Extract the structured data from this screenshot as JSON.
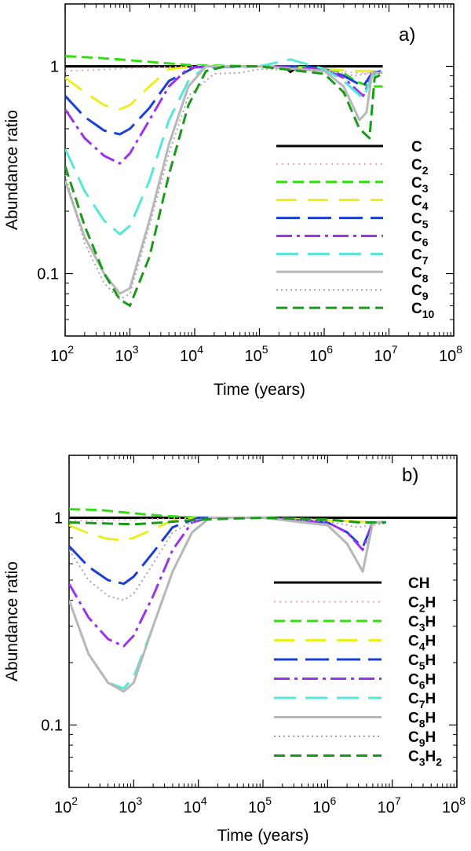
{
  "chart_data": [
    {
      "type": "line",
      "panel_label": "a)",
      "xlabel": "Time (years)",
      "ylabel": "Abundance ratio",
      "xscale": "log",
      "yscale": "log",
      "xlim": [
        100,
        100000000
      ],
      "ylim": [
        0.05,
        2
      ],
      "x_ticks": [
        {
          "base": "10",
          "exp": "2"
        },
        {
          "base": "10",
          "exp": "3"
        },
        {
          "base": "10",
          "exp": "4"
        },
        {
          "base": "10",
          "exp": "5"
        },
        {
          "base": "10",
          "exp": "6"
        },
        {
          "base": "10",
          "exp": "7"
        },
        {
          "base": "10",
          "exp": "8"
        }
      ],
      "y_ticks": [
        {
          "value": 1,
          "label": "1"
        },
        {
          "value": 0.1,
          "label": "0.1"
        }
      ],
      "legend_position": "lower-right",
      "series": [
        {
          "name": "C",
          "base": "C",
          "sub": "",
          "color": "#000000",
          "dash": "",
          "width": 3,
          "x": [
            100,
            1000,
            10000,
            100000,
            250000,
            300000,
            400000,
            1000000,
            3000000,
            8000000
          ],
          "y": [
            1.0,
            1.0,
            1.0,
            1.0,
            0.99,
            0.94,
            1.0,
            1.0,
            1.0,
            1.0
          ]
        },
        {
          "name": "C2",
          "base": "C",
          "sub": "2",
          "color": "#f4a0b0",
          "dash": "2,5",
          "width": 2,
          "x": [
            100,
            300,
            1000,
            3000,
            10000,
            30000,
            100000,
            1000000,
            3000000,
            8000000
          ],
          "y": [
            0.95,
            0.96,
            0.98,
            0.99,
            1.0,
            0.99,
            1.0,
            0.98,
            0.93,
            0.92
          ]
        },
        {
          "name": "C3",
          "base": "C",
          "sub": "3",
          "color": "#33dd11",
          "dash": "14,7",
          "width": 3,
          "x": [
            100,
            300,
            1000,
            3000,
            10000,
            100000,
            500000,
            1000000,
            2000000,
            3000000,
            5000000,
            8000000
          ],
          "y": [
            1.12,
            1.1,
            1.07,
            1.04,
            1.01,
            1.0,
            0.99,
            0.98,
            0.93,
            0.85,
            0.8,
            0.8
          ]
        },
        {
          "name": "C4",
          "base": "C",
          "sub": "4",
          "color": "#e8f020",
          "dash": "26,14",
          "width": 3,
          "x": [
            100,
            200,
            400,
            700,
            1000,
            2000,
            4000,
            10000,
            100000,
            1000000,
            3000000,
            8000000
          ],
          "y": [
            0.88,
            0.75,
            0.65,
            0.62,
            0.65,
            0.8,
            0.97,
            1.0,
            1.0,
            0.97,
            0.95,
            0.95
          ]
        },
        {
          "name": "C5",
          "base": "C",
          "sub": "5",
          "color": "#1a3fd6",
          "dash": "30,10",
          "width": 3,
          "x": [
            100,
            200,
            400,
            700,
            1000,
            2000,
            4000,
            10000,
            100000,
            500000,
            1000000,
            2000000,
            4000000,
            5500000,
            8000000
          ],
          "y": [
            0.72,
            0.57,
            0.49,
            0.47,
            0.5,
            0.63,
            0.85,
            0.99,
            1.0,
            1.0,
            0.97,
            0.9,
            0.8,
            0.93,
            0.95
          ]
        },
        {
          "name": "C6",
          "base": "C",
          "sub": "6",
          "color": "#9933ee",
          "dash": "20,6,4,6",
          "width": 3,
          "x": [
            100,
            200,
            400,
            700,
            1000,
            2000,
            4000,
            8000,
            15000,
            100000,
            1000000,
            2000000,
            4000000,
            5500000,
            8000000
          ],
          "y": [
            0.62,
            0.45,
            0.37,
            0.34,
            0.38,
            0.55,
            0.8,
            0.98,
            1.0,
            1.0,
            0.97,
            0.88,
            0.72,
            0.92,
            0.94
          ]
        },
        {
          "name": "C7",
          "base": "C",
          "sub": "7",
          "color": "#55e8d8",
          "dash": "28,12",
          "width": 3,
          "x": [
            100,
            200,
            400,
            700,
            1000,
            2000,
            4000,
            8000,
            15000,
            100000,
            300000,
            1000000,
            2000000,
            4000000,
            5500000,
            8000000
          ],
          "y": [
            0.4,
            0.25,
            0.18,
            0.155,
            0.17,
            0.28,
            0.55,
            0.85,
            1.0,
            1.0,
            1.08,
            0.97,
            0.85,
            0.7,
            0.9,
            0.92
          ]
        },
        {
          "name": "C8",
          "base": "C",
          "sub": "8",
          "color": "#b8b8b8",
          "dash": "",
          "width": 3,
          "x": [
            100,
            200,
            400,
            700,
            1000,
            2000,
            4000,
            8000,
            15000,
            30000,
            100000,
            1000000,
            2000000,
            3500000,
            4500000,
            5500000,
            8000000
          ],
          "y": [
            0.28,
            0.15,
            0.1,
            0.08,
            0.085,
            0.18,
            0.42,
            0.8,
            1.0,
            1.0,
            1.0,
            0.95,
            0.8,
            0.55,
            0.6,
            0.93,
            0.93
          ]
        },
        {
          "name": "C9",
          "base": "C",
          "sub": "9",
          "color": "#b0a0b0",
          "dash": "2,4",
          "width": 2,
          "x": [
            100,
            200,
            400,
            700,
            1000,
            2000,
            4000,
            8000,
            20000,
            50000,
            100000,
            1000000,
            3000000,
            5000000,
            8000000
          ],
          "y": [
            0.3,
            0.14,
            0.09,
            0.075,
            0.08,
            0.17,
            0.38,
            0.72,
            0.92,
            0.93,
            0.97,
            0.96,
            0.9,
            0.93,
            0.93
          ]
        },
        {
          "name": "C10",
          "base": "C",
          "sub": "10",
          "color": "#1a9a1a",
          "dash": "14,7",
          "width": 3,
          "x": [
            100,
            200,
            400,
            700,
            1000,
            2000,
            4000,
            8000,
            15000,
            30000,
            100000,
            1000000,
            2000000,
            3500000,
            5000000,
            6000000,
            8000000
          ],
          "y": [
            0.33,
            0.17,
            0.1,
            0.075,
            0.07,
            0.12,
            0.3,
            0.65,
            0.95,
            1.0,
            1.0,
            0.92,
            0.75,
            0.5,
            0.45,
            0.88,
            0.92
          ]
        }
      ]
    },
    {
      "type": "line",
      "panel_label": "b)",
      "xlabel": "Time (years)",
      "ylabel": "Abundance ratio",
      "xscale": "log",
      "yscale": "log",
      "xlim": [
        100,
        100000000
      ],
      "ylim": [
        0.05,
        2
      ],
      "x_ticks": [
        {
          "base": "10",
          "exp": "2"
        },
        {
          "base": "10",
          "exp": "3"
        },
        {
          "base": "10",
          "exp": "4"
        },
        {
          "base": "10",
          "exp": "5"
        },
        {
          "base": "10",
          "exp": "6"
        },
        {
          "base": "10",
          "exp": "7"
        },
        {
          "base": "10",
          "exp": "8"
        }
      ],
      "y_ticks": [
        {
          "value": 1,
          "label": "1"
        },
        {
          "value": 0.1,
          "label": "0.1"
        }
      ],
      "legend_position": "lower-right",
      "series": [
        {
          "name": "CH",
          "base": "CH",
          "sub": "",
          "tail": "",
          "color": "#000000",
          "dash": "",
          "width": 3,
          "x": [
            100,
            1000,
            10000,
            100000,
            1000000,
            10000000,
            100000000
          ],
          "y": [
            1.0,
            1.0,
            1.0,
            1.0,
            1.0,
            1.0,
            1.0
          ]
        },
        {
          "name": "C2H",
          "base": "C",
          "sub": "2",
          "tail": "H",
          "color": "#f4a0b0",
          "dash": "2,5",
          "width": 2,
          "x": [
            100,
            1000,
            10000,
            100000,
            1000000,
            3000000,
            8000000
          ],
          "y": [
            0.97,
            0.98,
            1.0,
            1.0,
            0.98,
            0.95,
            0.95
          ]
        },
        {
          "name": "C3H",
          "base": "C",
          "sub": "3",
          "tail": "H",
          "color": "#33dd11",
          "dash": "14,7",
          "width": 3,
          "x": [
            100,
            300,
            1000,
            3000,
            10000,
            100000,
            1000000,
            3000000,
            8000000
          ],
          "y": [
            1.1,
            1.09,
            1.05,
            1.02,
            1.0,
            1.0,
            0.98,
            0.95,
            0.95
          ]
        },
        {
          "name": "C4H",
          "base": "C",
          "sub": "4",
          "tail": "H",
          "color": "#e8f020",
          "dash": "26,14",
          "width": 3,
          "x": [
            100,
            200,
            400,
            700,
            1000,
            2000,
            4000,
            10000,
            100000,
            1000000,
            8000000
          ],
          "y": [
            0.92,
            0.84,
            0.79,
            0.78,
            0.8,
            0.88,
            0.97,
            1.0,
            1.0,
            0.97,
            0.95
          ]
        },
        {
          "name": "C5H",
          "base": "C",
          "sub": "5",
          "tail": "H",
          "color": "#1a3fd6",
          "dash": "30,10",
          "width": 3,
          "x": [
            100,
            200,
            400,
            700,
            1000,
            2000,
            4000,
            10000,
            100000,
            1000000,
            2000000,
            3500000,
            5000000,
            8000000
          ],
          "y": [
            0.73,
            0.58,
            0.5,
            0.48,
            0.52,
            0.68,
            0.9,
            1.0,
            1.0,
            0.95,
            0.85,
            0.72,
            0.95,
            0.95
          ]
        },
        {
          "name": "C6H",
          "base": "C",
          "sub": "6",
          "tail": "H",
          "color": "#9933ee",
          "dash": "20,6,4,6",
          "width": 3,
          "x": [
            100,
            200,
            400,
            700,
            1000,
            2000,
            4000,
            8000,
            15000,
            100000,
            1000000,
            2000000,
            3500000,
            5000000,
            8000000
          ],
          "y": [
            0.48,
            0.33,
            0.26,
            0.24,
            0.27,
            0.42,
            0.7,
            0.95,
            1.0,
            1.0,
            0.95,
            0.85,
            0.7,
            0.95,
            0.95
          ]
        },
        {
          "name": "C7H",
          "base": "C",
          "sub": "7",
          "tail": "H",
          "color": "#55e8d8",
          "dash": "28,12",
          "width": 3,
          "x": [
            100,
            200,
            400,
            700,
            1000,
            2000,
            4000,
            8000,
            15000,
            30000,
            100000,
            1000000,
            2000000,
            3500000,
            5000000,
            8000000
          ],
          "y": [
            0.4,
            0.22,
            0.16,
            0.15,
            0.17,
            0.3,
            0.55,
            0.85,
            1.0,
            1.0,
            1.0,
            0.92,
            0.75,
            0.55,
            0.95,
            0.95
          ]
        },
        {
          "name": "C8H",
          "base": "C",
          "sub": "8",
          "tail": "H",
          "color": "#b8b8b8",
          "dash": "",
          "width": 3,
          "x": [
            100,
            200,
            400,
            700,
            1000,
            2000,
            4000,
            8000,
            15000,
            30000,
            100000,
            1000000,
            2000000,
            3500000,
            5000000,
            8000000
          ],
          "y": [
            0.4,
            0.22,
            0.16,
            0.145,
            0.16,
            0.3,
            0.55,
            0.85,
            1.0,
            1.0,
            1.0,
            0.92,
            0.75,
            0.55,
            0.95,
            0.95
          ]
        },
        {
          "name": "C9H",
          "base": "C",
          "sub": "9",
          "tail": "H",
          "color": "#b0a0b0",
          "dash": "2,4",
          "width": 2,
          "x": [
            100,
            200,
            400,
            700,
            1000,
            2000,
            4000,
            10000,
            100000,
            1000000,
            3000000,
            8000000
          ],
          "y": [
            0.7,
            0.5,
            0.42,
            0.4,
            0.43,
            0.6,
            0.85,
            0.99,
            1.0,
            0.96,
            0.9,
            0.94
          ]
        },
        {
          "name": "C3H2",
          "base": "C",
          "sub": "3",
          "tail": "H",
          "sub2": "2",
          "color": "#1a9a1a",
          "dash": "14,7",
          "width": 3,
          "x": [
            100,
            300,
            1000,
            3000,
            10000,
            100000,
            1000000,
            3000000,
            8000000
          ],
          "y": [
            0.95,
            0.94,
            0.93,
            0.95,
            0.98,
            1.0,
            0.98,
            0.95,
            0.95
          ]
        }
      ]
    }
  ]
}
